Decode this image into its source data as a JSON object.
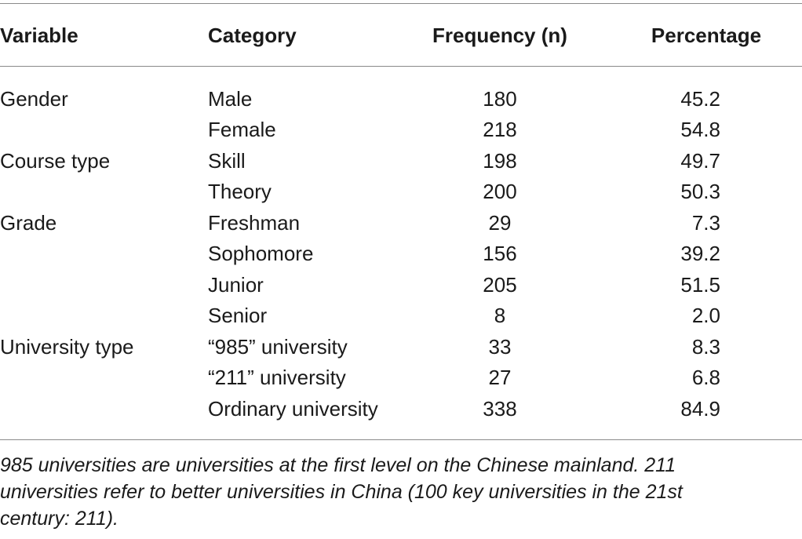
{
  "table": {
    "headers": {
      "variable": "Variable",
      "category": "Category",
      "frequency": "Frequency (n)",
      "percentage": "Percentage"
    },
    "rows": [
      {
        "variable": "Gender",
        "category": "Male",
        "frequency": "180",
        "percentage": "45.2"
      },
      {
        "variable": "",
        "category": "Female",
        "frequency": "218",
        "percentage": "54.8"
      },
      {
        "variable": "Course type",
        "category": "Skill",
        "frequency": "198",
        "percentage": "49.7"
      },
      {
        "variable": "",
        "category": "Theory",
        "frequency": "200",
        "percentage": "50.3"
      },
      {
        "variable": "Grade",
        "category": "Freshman",
        "frequency": "29",
        "percentage": "7.3"
      },
      {
        "variable": "",
        "category": "Sophomore",
        "frequency": "156",
        "percentage": "39.2"
      },
      {
        "variable": "",
        "category": "Junior",
        "frequency": "205",
        "percentage": "51.5"
      },
      {
        "variable": "",
        "category": "Senior",
        "frequency": "8",
        "percentage": "2.0"
      },
      {
        "variable": "University type",
        "category": "“985” university",
        "frequency": "33",
        "percentage": "8.3"
      },
      {
        "variable": "",
        "category": "“211” university",
        "frequency": "27",
        "percentage": "6.8"
      },
      {
        "variable": "",
        "category": "Ordinary university",
        "frequency": "338",
        "percentage": "84.9"
      }
    ],
    "footnote_lines": [
      "985 universities are universities at the first level on the Chinese mainland. 211",
      "universities refer to better universities in China (100 key universities in the 21st",
      "century: 211)."
    ]
  }
}
